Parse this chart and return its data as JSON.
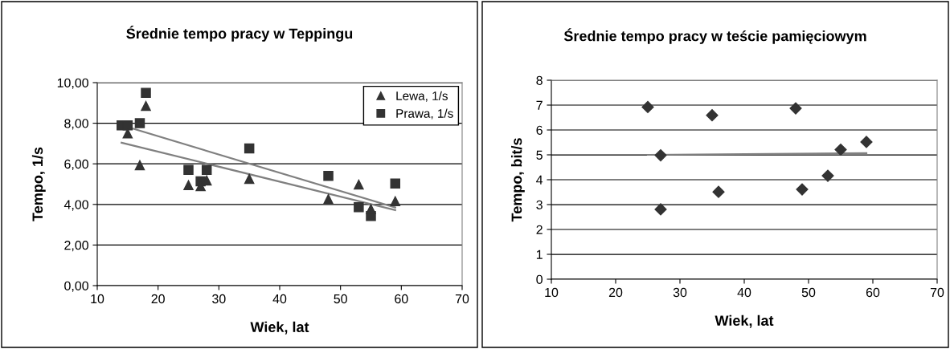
{
  "chart_data": [
    {
      "type": "scatter",
      "title": "Średnie tempo pracy w Teppingu",
      "xlabel": "Wiek, lat",
      "ylabel": "Tempo, 1/s",
      "xlim": [
        10,
        70
      ],
      "xticks": [
        10,
        20,
        30,
        40,
        50,
        60,
        70
      ],
      "ylim": [
        0,
        10
      ],
      "yticks": [
        {
          "value": 0,
          "label": "0,00"
        },
        {
          "value": 2,
          "label": "2,00"
        },
        {
          "value": 4,
          "label": "4,00"
        },
        {
          "value": 6,
          "label": "6,00"
        },
        {
          "value": 8,
          "label": "8,00"
        },
        {
          "value": 10,
          "label": "10,00"
        }
      ],
      "grid": "y",
      "legend": "top right",
      "series": [
        {
          "name": "Lewa, 1/s",
          "color": "#333333",
          "marker": "triangle",
          "x": [
            15,
            18,
            17,
            25,
            27,
            28,
            35,
            48,
            53,
            55,
            59
          ],
          "values": [
            7.5,
            8.85,
            5.93,
            4.95,
            4.9,
            5.18,
            5.26,
            4.26,
            4.98,
            3.77,
            4.16
          ]
        },
        {
          "name": "Prawa, 1/s",
          "color": "#333333",
          "marker": "square",
          "x": [
            14,
            15,
            17,
            18,
            25,
            27,
            28,
            35,
            48,
            53,
            55,
            59
          ],
          "values": [
            7.9,
            7.9,
            8.0,
            9.5,
            5.7,
            5.14,
            5.7,
            6.76,
            5.41,
            3.86,
            3.43,
            5.03
          ]
        },
        {
          "type": "line",
          "color": "#808080",
          "marker": "none",
          "x": [
            14,
            59
          ],
          "values": [
            7.04,
            3.72
          ]
        },
        {
          "type": "line",
          "color": "#808080",
          "marker": "none",
          "x": [
            14,
            59
          ],
          "values": [
            7.9,
            3.85
          ]
        }
      ]
    },
    {
      "type": "scatter",
      "title": "Średnie tempo pracy w teście pamięciowym",
      "xlabel": "Wiek, lat",
      "ylabel": "Tempo, bit/s",
      "xlim": [
        10,
        70
      ],
      "xticks": [
        10,
        20,
        30,
        40,
        50,
        60,
        70
      ],
      "ylim": [
        0,
        8
      ],
      "yticks": [
        0,
        1,
        2,
        3,
        4,
        5,
        6,
        7,
        8
      ],
      "grid": "y",
      "series": [
        {
          "color": "#333333",
          "marker": "diamond",
          "x": [
            25,
            27,
            27,
            35,
            36,
            48,
            49,
            53,
            55,
            59
          ],
          "values": [
            6.92,
            4.98,
            2.81,
            6.59,
            3.51,
            6.87,
            3.61,
            4.16,
            5.21,
            5.52
          ]
        },
        {
          "type": "line",
          "color": "#808080",
          "marker": "none",
          "x": [
            25,
            59
          ],
          "values": [
            5.0,
            5.07
          ]
        }
      ]
    }
  ]
}
